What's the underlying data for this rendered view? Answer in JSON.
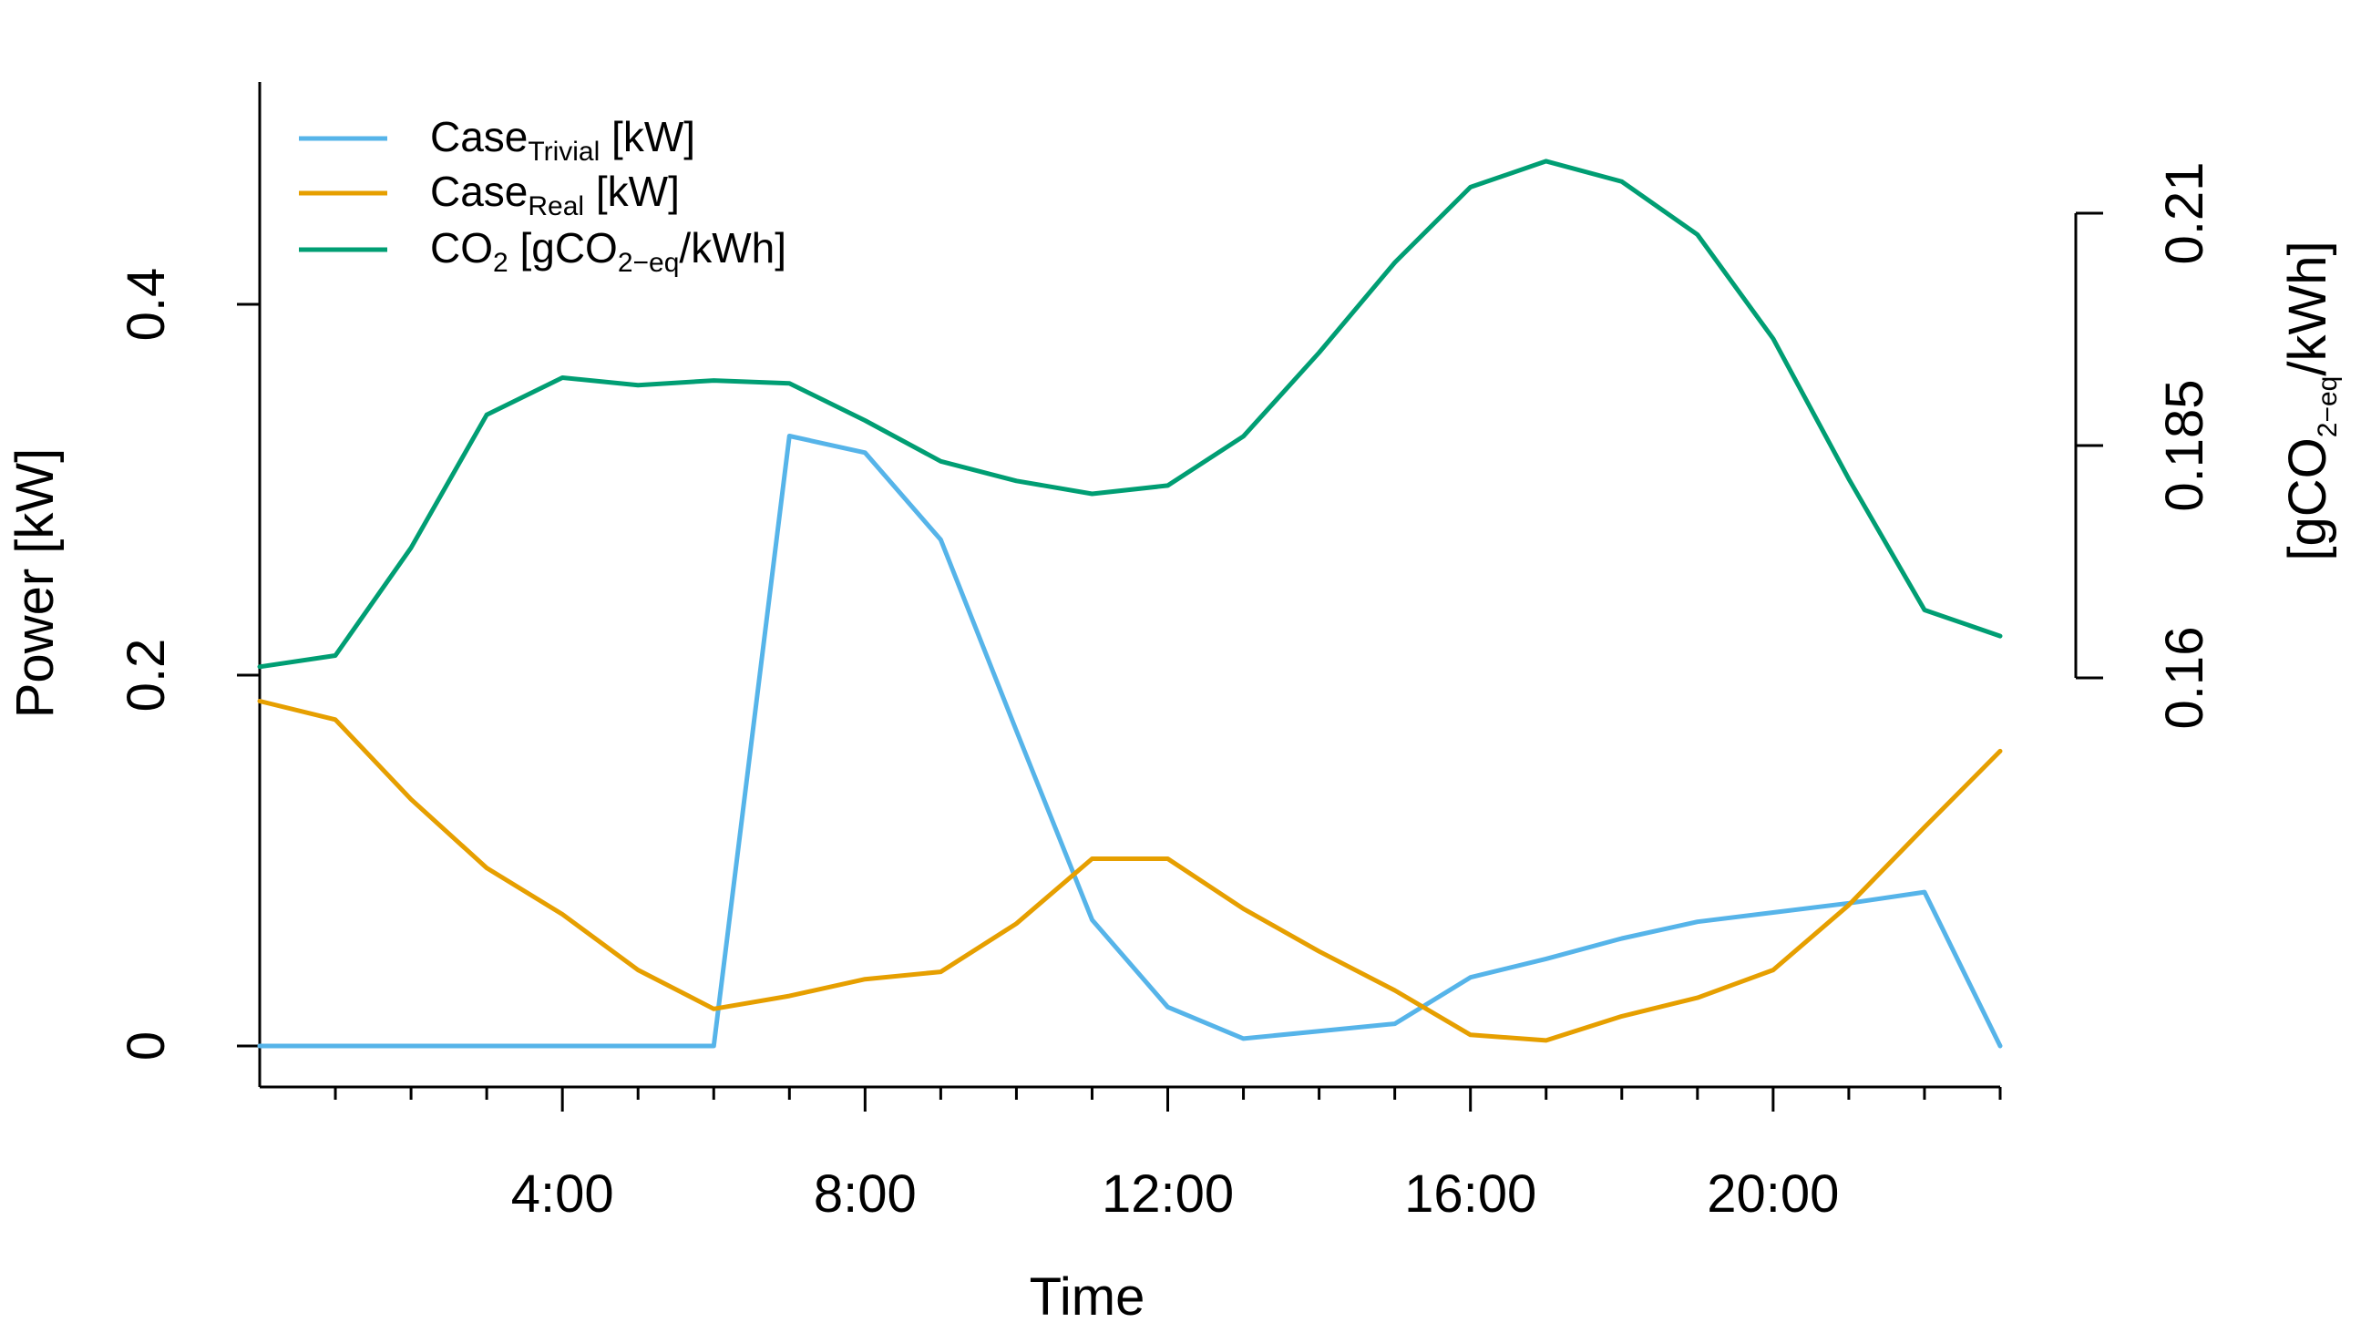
{
  "chart_data": {
    "type": "line",
    "title": "",
    "xlabel": "Time",
    "ylabel": "Power [kW]",
    "y2label": {
      "main": "[gCO",
      "sub": "2−eq",
      "tail": "/kWh]"
    },
    "x": [
      0,
      1,
      2,
      3,
      4,
      5,
      6,
      7,
      8,
      9,
      10,
      11,
      12,
      13,
      14,
      15,
      16,
      17,
      18,
      19,
      20,
      21,
      22,
      23
    ],
    "xlim": [
      0,
      23
    ],
    "ylim": [
      0,
      0.5
    ],
    "y2lim": [
      0.16,
      0.21
    ],
    "x_ticks": [
      {
        "value": 4,
        "label": "4:00"
      },
      {
        "value": 8,
        "label": "8:00"
      },
      {
        "value": 12,
        "label": "12:00"
      },
      {
        "value": 16,
        "label": "16:00"
      },
      {
        "value": 20,
        "label": "20:00"
      }
    ],
    "x_minor_ticks": [
      1,
      2,
      3,
      5,
      6,
      7,
      9,
      10,
      11,
      13,
      14,
      15,
      17,
      18,
      19,
      21,
      22,
      23
    ],
    "y_ticks": [
      {
        "value": 0,
        "label": "0"
      },
      {
        "value": 0.2,
        "label": "0.2"
      },
      {
        "value": 0.4,
        "label": "0.4"
      }
    ],
    "y2_ticks": [
      {
        "value": 0.16,
        "label": "0.16"
      },
      {
        "value": 0.185,
        "label": "0.185"
      },
      {
        "value": 0.21,
        "label": "0.21"
      }
    ],
    "legend_position": "top-left",
    "series": [
      {
        "name": "Case Trivial",
        "legend": {
          "main": "Case",
          "sub": "Trivial",
          "tail": " [kW]"
        },
        "color": "#56B4E9",
        "axis": "left",
        "values": [
          0,
          0,
          0,
          0,
          0,
          0,
          0,
          0.329,
          0.32,
          0.273,
          0.17,
          0.068,
          0.021,
          0.004,
          0.008,
          0.012,
          0.037,
          0.047,
          0.058,
          0.067,
          0.072,
          0.077,
          0.083,
          0.0
        ]
      },
      {
        "name": "Case Real",
        "legend": {
          "main": "Case",
          "sub": "Real",
          "tail": " [kW]"
        },
        "color": "#E69F00",
        "axis": "left",
        "values": [
          0.186,
          0.176,
          0.133,
          0.096,
          0.071,
          0.041,
          0.02,
          0.027,
          0.036,
          0.04,
          0.066,
          0.101,
          0.101,
          0.074,
          0.051,
          0.03,
          0.006,
          0.003,
          0.016,
          0.026,
          0.041,
          0.076,
          0.118,
          0.159
        ]
      },
      {
        "name": "CO2",
        "legend": {
          "main": "CO",
          "sub": "2",
          "tail": " [gCO",
          "sub2": "2−eq",
          "tail2": "/kWh]"
        },
        "color": "#009E73",
        "axis": "right",
        "values": [
          0.1612,
          0.1624,
          0.174,
          0.1883,
          0.1923,
          0.1915,
          0.192,
          0.1917,
          0.1877,
          0.1833,
          0.1812,
          0.1798,
          0.1807,
          0.186,
          0.195,
          0.2047,
          0.2128,
          0.2156,
          0.2134,
          0.2077,
          0.1965,
          0.1814,
          0.1673,
          0.1645
        ]
      }
    ]
  }
}
